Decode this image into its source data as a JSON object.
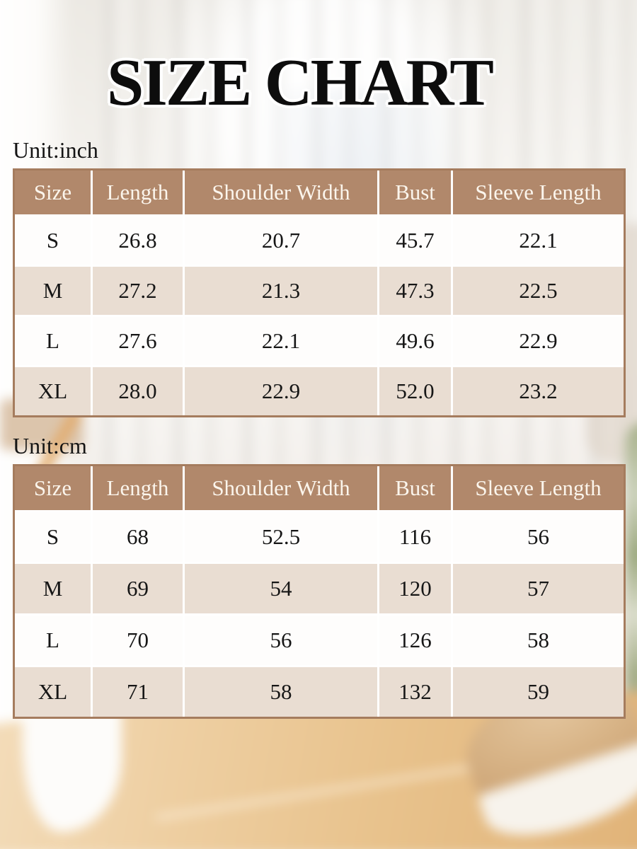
{
  "page": {
    "title": "SIZE CHART"
  },
  "chart_data": [
    {
      "type": "table",
      "unit_label": "Unit:inch",
      "columns": [
        "Size",
        "Length",
        "Shoulder Width",
        "Bust",
        "Sleeve Length"
      ],
      "rows": [
        [
          "S",
          "26.8",
          "20.7",
          "45.7",
          "22.1"
        ],
        [
          "M",
          "27.2",
          "21.3",
          "47.3",
          "22.5"
        ],
        [
          "L",
          "27.6",
          "22.1",
          "49.6",
          "22.9"
        ],
        [
          "XL",
          "28.0",
          "22.9",
          "52.0",
          "23.2"
        ]
      ]
    },
    {
      "type": "table",
      "unit_label": "Unit:cm",
      "columns": [
        "Size",
        "Length",
        "Shoulder Width",
        "Bust",
        "Sleeve Length"
      ],
      "rows": [
        [
          "S",
          "68",
          "52.5",
          "116",
          "56"
        ],
        [
          "M",
          "69",
          "54",
          "120",
          "57"
        ],
        [
          "L",
          "70",
          "56",
          "126",
          "58"
        ],
        [
          "XL",
          "71",
          "58",
          "132",
          "59"
        ]
      ]
    }
  ],
  "colors": {
    "header_bg": "#b1886b",
    "row_beige": "#e9ddd2",
    "row_white": "#fefdfc",
    "table_border": "#a57c5e",
    "header_text": "#fbf5ec",
    "body_text": "#161616",
    "title_text": "#0d0d0d",
    "title_outline": "#ffffff"
  }
}
